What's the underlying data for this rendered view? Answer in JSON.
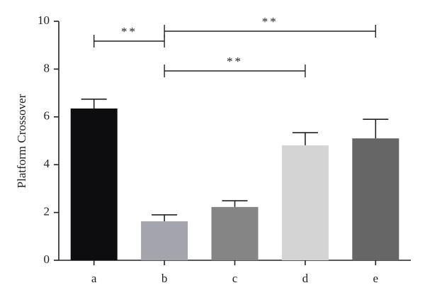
{
  "chart_data": {
    "type": "bar",
    "y_label": "Platform Crossover",
    "categories": [
      "a",
      "b",
      "c",
      "d",
      "e"
    ],
    "values": [
      6.35,
      1.63,
      2.23,
      4.81,
      5.1
    ],
    "errors": [
      0.39,
      0.27,
      0.26,
      0.53,
      0.8
    ],
    "colors": [
      "#0d0d0f",
      "#a4a4ac",
      "#858585",
      "#d4d4d4",
      "#666666"
    ],
    "ylim": [
      0,
      10
    ],
    "yticks": [
      0,
      2,
      4,
      6,
      8,
      10
    ],
    "annotations": [
      {
        "between": [
          "a",
          "b"
        ],
        "label": "**"
      },
      {
        "between": [
          "b",
          "e"
        ],
        "label": "**"
      },
      {
        "between": [
          "b",
          "d"
        ],
        "label": "**"
      }
    ]
  }
}
